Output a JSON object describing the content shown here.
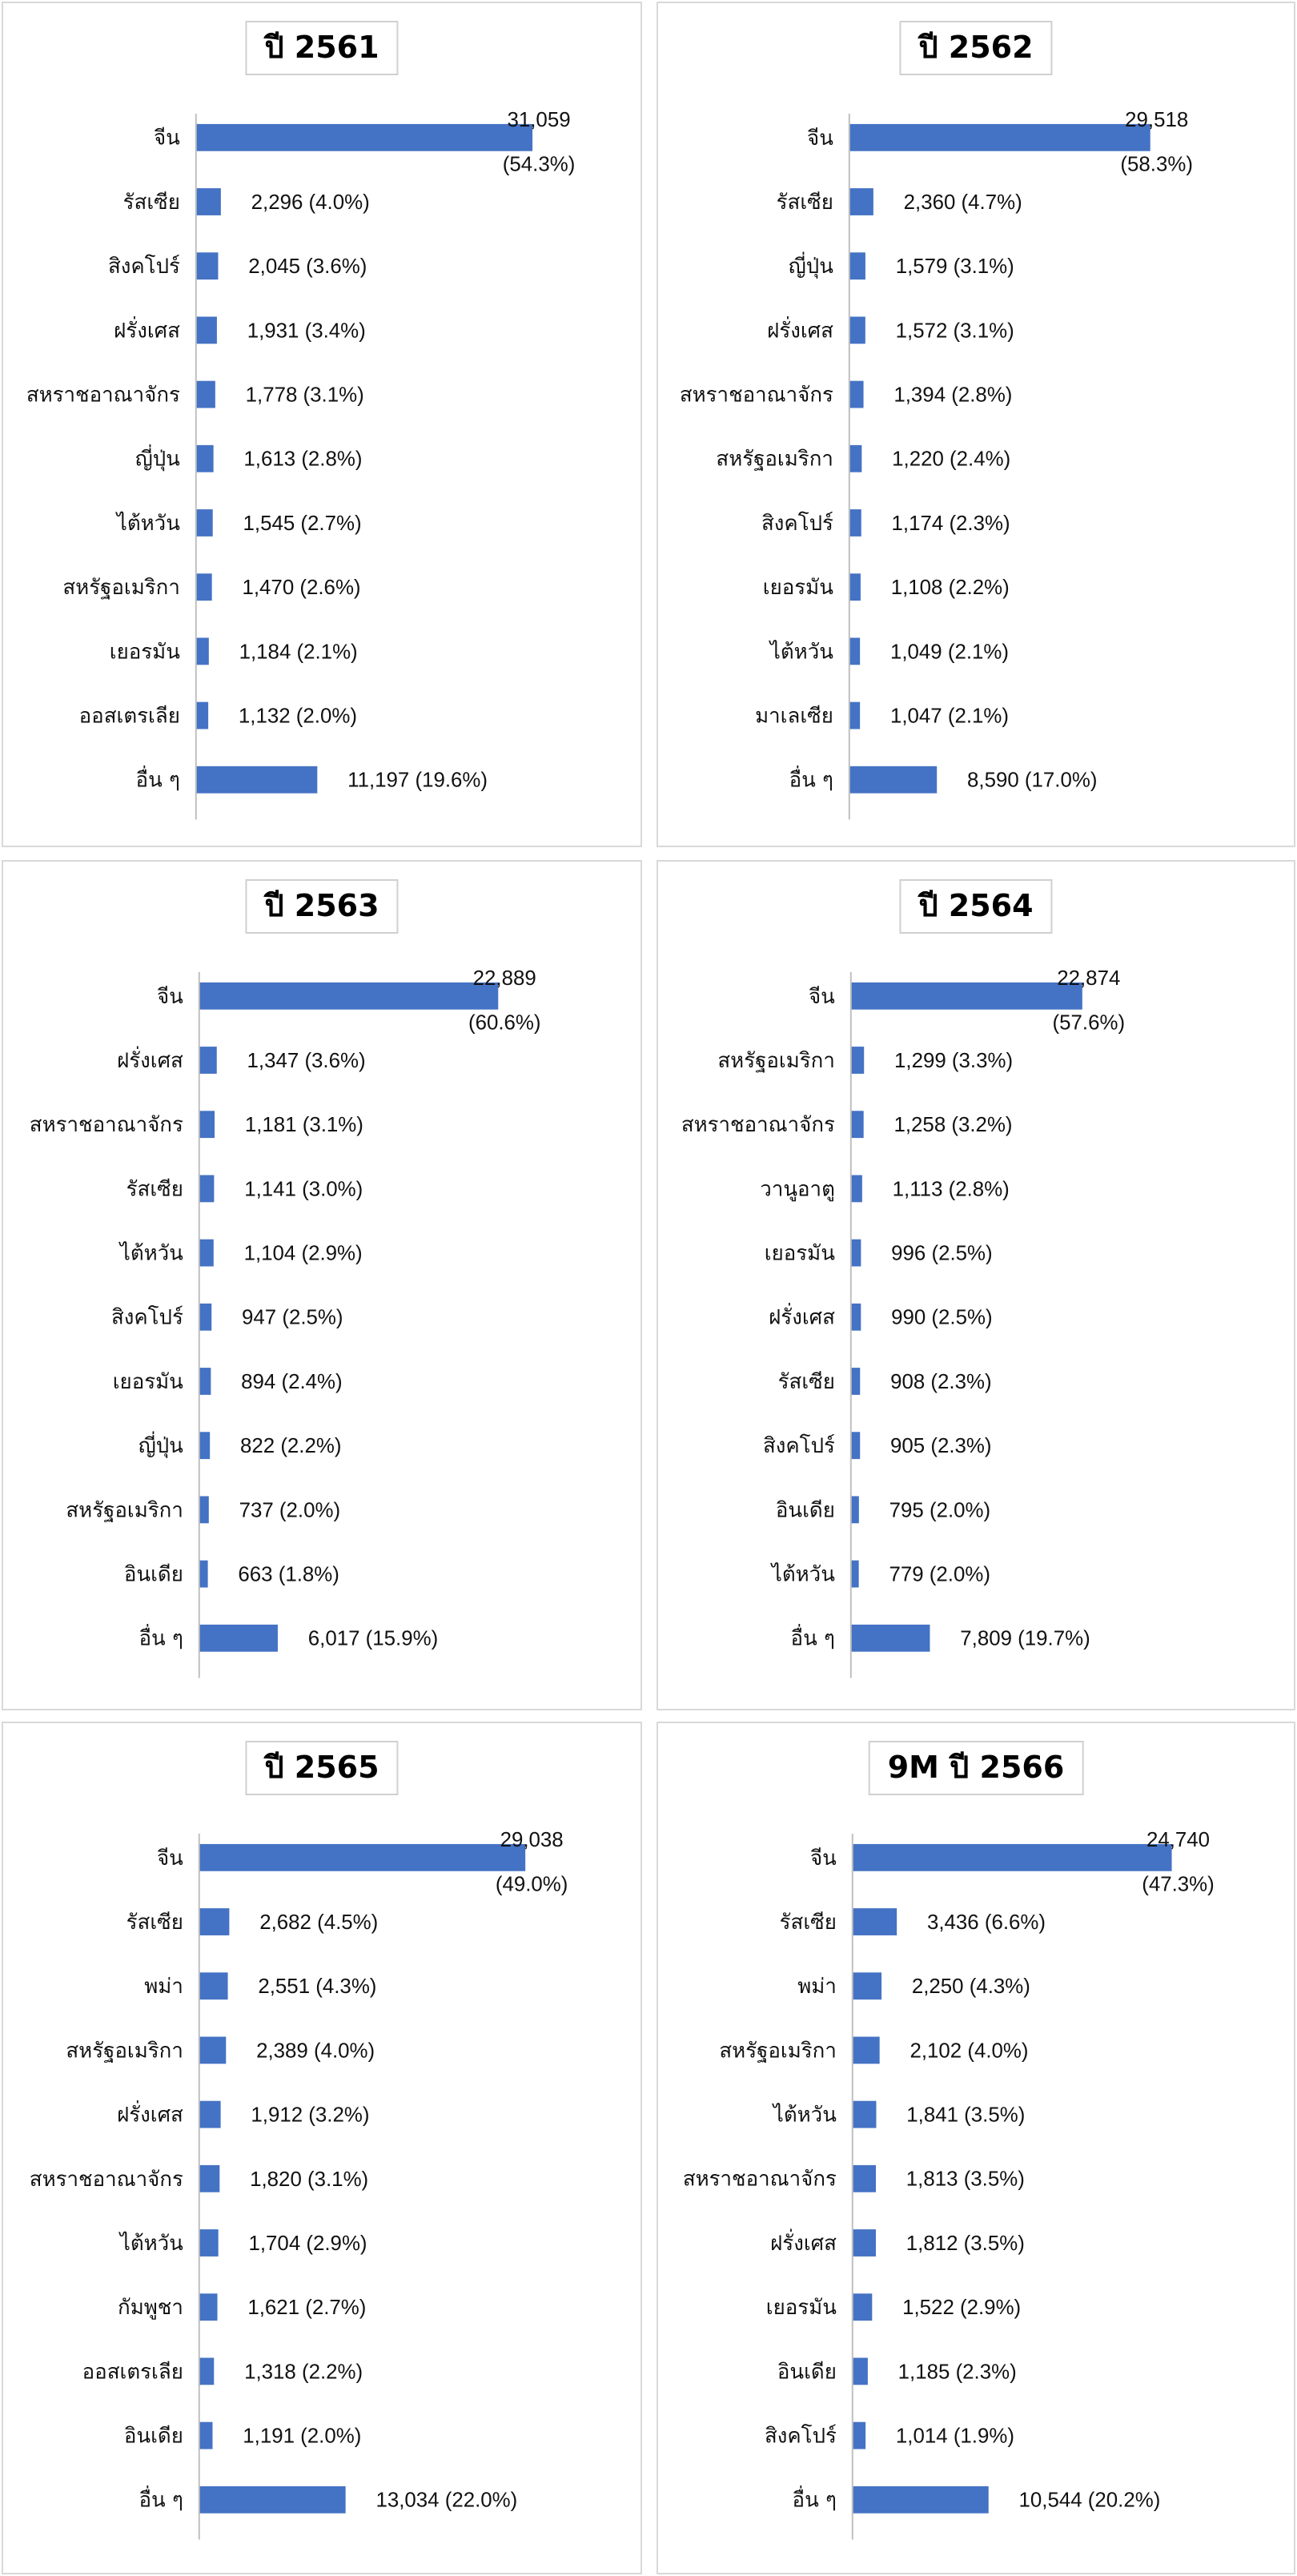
{
  "colors": {
    "bar": "#4472C4",
    "axis": "#bfbfbf",
    "panel_border": "#d9d9d9",
    "text": "#111111"
  },
  "chart_data": [
    {
      "type": "bar",
      "orientation": "horizontal",
      "title": "ปี 2561",
      "categories": [
        "จีน",
        "รัสเซีย",
        "สิงคโปร์",
        "ฝรั่งเศส",
        "สหราชอาณาจักร",
        "ญี่ปุ่น",
        "ไต้หวัน",
        "สหรัฐอเมริกา",
        "เยอรมัน",
        "ออสเตรเลีย",
        "อื่น ๆ"
      ],
      "values": [
        31059,
        2296,
        2045,
        1931,
        1778,
        1613,
        1545,
        1470,
        1184,
        1132,
        11197
      ],
      "value_labels": [
        "31,059",
        "2,296 (4.0%)",
        "2,045 (3.6%)",
        "1,931 (3.4%)",
        "1,778 (3.1%)",
        "1,613 (2.8%)",
        "1,545 (2.7%)",
        "1,470 (2.6%)",
        "1,184 (2.1%)",
        "1,132 (2.0%)",
        "11,197 (19.6%)"
      ],
      "first_pct_label": "(54.3%)"
    },
    {
      "type": "bar",
      "orientation": "horizontal",
      "title": "ปี 2562",
      "categories": [
        "จีน",
        "รัสเซีย",
        "ญี่ปุ่น",
        "ฝรั่งเศส",
        "สหราชอาณาจักร",
        "สหรัฐอเมริกา",
        "สิงคโปร์",
        "เยอรมัน",
        "ไต้หวัน",
        "มาเลเซีย",
        "อื่น ๆ"
      ],
      "values": [
        29518,
        2360,
        1579,
        1572,
        1394,
        1220,
        1174,
        1108,
        1049,
        1047,
        8590
      ],
      "value_labels": [
        "29,518",
        "2,360 (4.7%)",
        "1,579 (3.1%)",
        "1,572 (3.1%)",
        "1,394 (2.8%)",
        "1,220 (2.4%)",
        "1,174 (2.3%)",
        "1,108 (2.2%)",
        "1,049 (2.1%)",
        "1,047 (2.1%)",
        "8,590 (17.0%)"
      ],
      "first_pct_label": "(58.3%)"
    },
    {
      "type": "bar",
      "orientation": "horizontal",
      "title": "ปี 2563",
      "categories": [
        "จีน",
        "ฝรั่งเศส",
        "สหราชอาณาจักร",
        "รัสเซีย",
        "ไต้หวัน",
        "สิงคโปร์",
        "เยอรมัน",
        "ญี่ปุ่น",
        "สหรัฐอเมริกา",
        "อินเดีย",
        "อื่น ๆ"
      ],
      "values": [
        22889,
        1347,
        1181,
        1141,
        1104,
        947,
        894,
        822,
        737,
        663,
        6017
      ],
      "value_labels": [
        "22,889",
        "1,347 (3.6%)",
        "1,181 (3.1%)",
        "1,141 (3.0%)",
        "1,104 (2.9%)",
        "947 (2.5%)",
        "894 (2.4%)",
        "822 (2.2%)",
        "737 (2.0%)",
        "663 (1.8%)",
        "6,017 (15.9%)"
      ],
      "first_pct_label": "(60.6%)"
    },
    {
      "type": "bar",
      "orientation": "horizontal",
      "title": "ปี 2564",
      "categories": [
        "จีน",
        "สหรัฐอเมริกา",
        "สหราชอาณาจักร",
        "วานูอาตู",
        "เยอรมัน",
        "ฝรั่งเศส",
        "รัสเซีย",
        "สิงคโปร์",
        "อินเดีย",
        "ไต้หวัน",
        "อื่น ๆ"
      ],
      "values": [
        22874,
        1299,
        1258,
        1113,
        996,
        990,
        908,
        905,
        795,
        779,
        7809
      ],
      "value_labels": [
        "22,874",
        "1,299 (3.3%)",
        "1,258 (3.2%)",
        "1,113 (2.8%)",
        "996 (2.5%)",
        "990 (2.5%)",
        "908 (2.3%)",
        "905 (2.3%)",
        "795 (2.0%)",
        "779 (2.0%)",
        "7,809 (19.7%)"
      ],
      "first_pct_label": "(57.6%)"
    },
    {
      "type": "bar",
      "orientation": "horizontal",
      "title": "ปี 2565",
      "categories": [
        "จีน",
        "รัสเซีย",
        "พม่า",
        "สหรัฐอเมริกา",
        "ฝรั่งเศส",
        "สหราชอาณาจักร",
        "ไต้หวัน",
        "กัมพูชา",
        "ออสเตรเลีย",
        "อินเดีย",
        "อื่น ๆ"
      ],
      "values": [
        29038,
        2682,
        2551,
        2389,
        1912,
        1820,
        1704,
        1621,
        1318,
        1191,
        13034
      ],
      "value_labels": [
        "29,038",
        "2,682 (4.5%)",
        "2,551 (4.3%)",
        "2,389 (4.0%)",
        "1,912 (3.2%)",
        "1,820 (3.1%)",
        "1,704 (2.9%)",
        "1,621 (2.7%)",
        "1,318 (2.2%)",
        "1,191 (2.0%)",
        "13,034 (22.0%)"
      ],
      "first_pct_label": "(49.0%)"
    },
    {
      "type": "bar",
      "orientation": "horizontal",
      "title": "9M ปี 2566",
      "categories": [
        "จีน",
        "รัสเซีย",
        "พม่า",
        "สหรัฐอเมริกา",
        "ไต้หวัน",
        "สหราชอาณาจักร",
        "ฝรั่งเศส",
        "เยอรมัน",
        "อินเดีย",
        "สิงคโปร์",
        "อื่น ๆ"
      ],
      "values": [
        24740,
        3436,
        2250,
        2102,
        1841,
        1813,
        1812,
        1522,
        1185,
        1014,
        10544
      ],
      "value_labels": [
        "24,740",
        "3,436 (6.6%)",
        "2,250 (4.3%)",
        "2,102 (4.0%)",
        "1,841 (3.5%)",
        "1,813 (3.5%)",
        "1,812 (3.5%)",
        "1,522 (2.9%)",
        "1,185 (2.3%)",
        "1,014 (1.9%)",
        "10,544 (20.2%)"
      ],
      "first_pct_label": "(47.3%)"
    }
  ]
}
